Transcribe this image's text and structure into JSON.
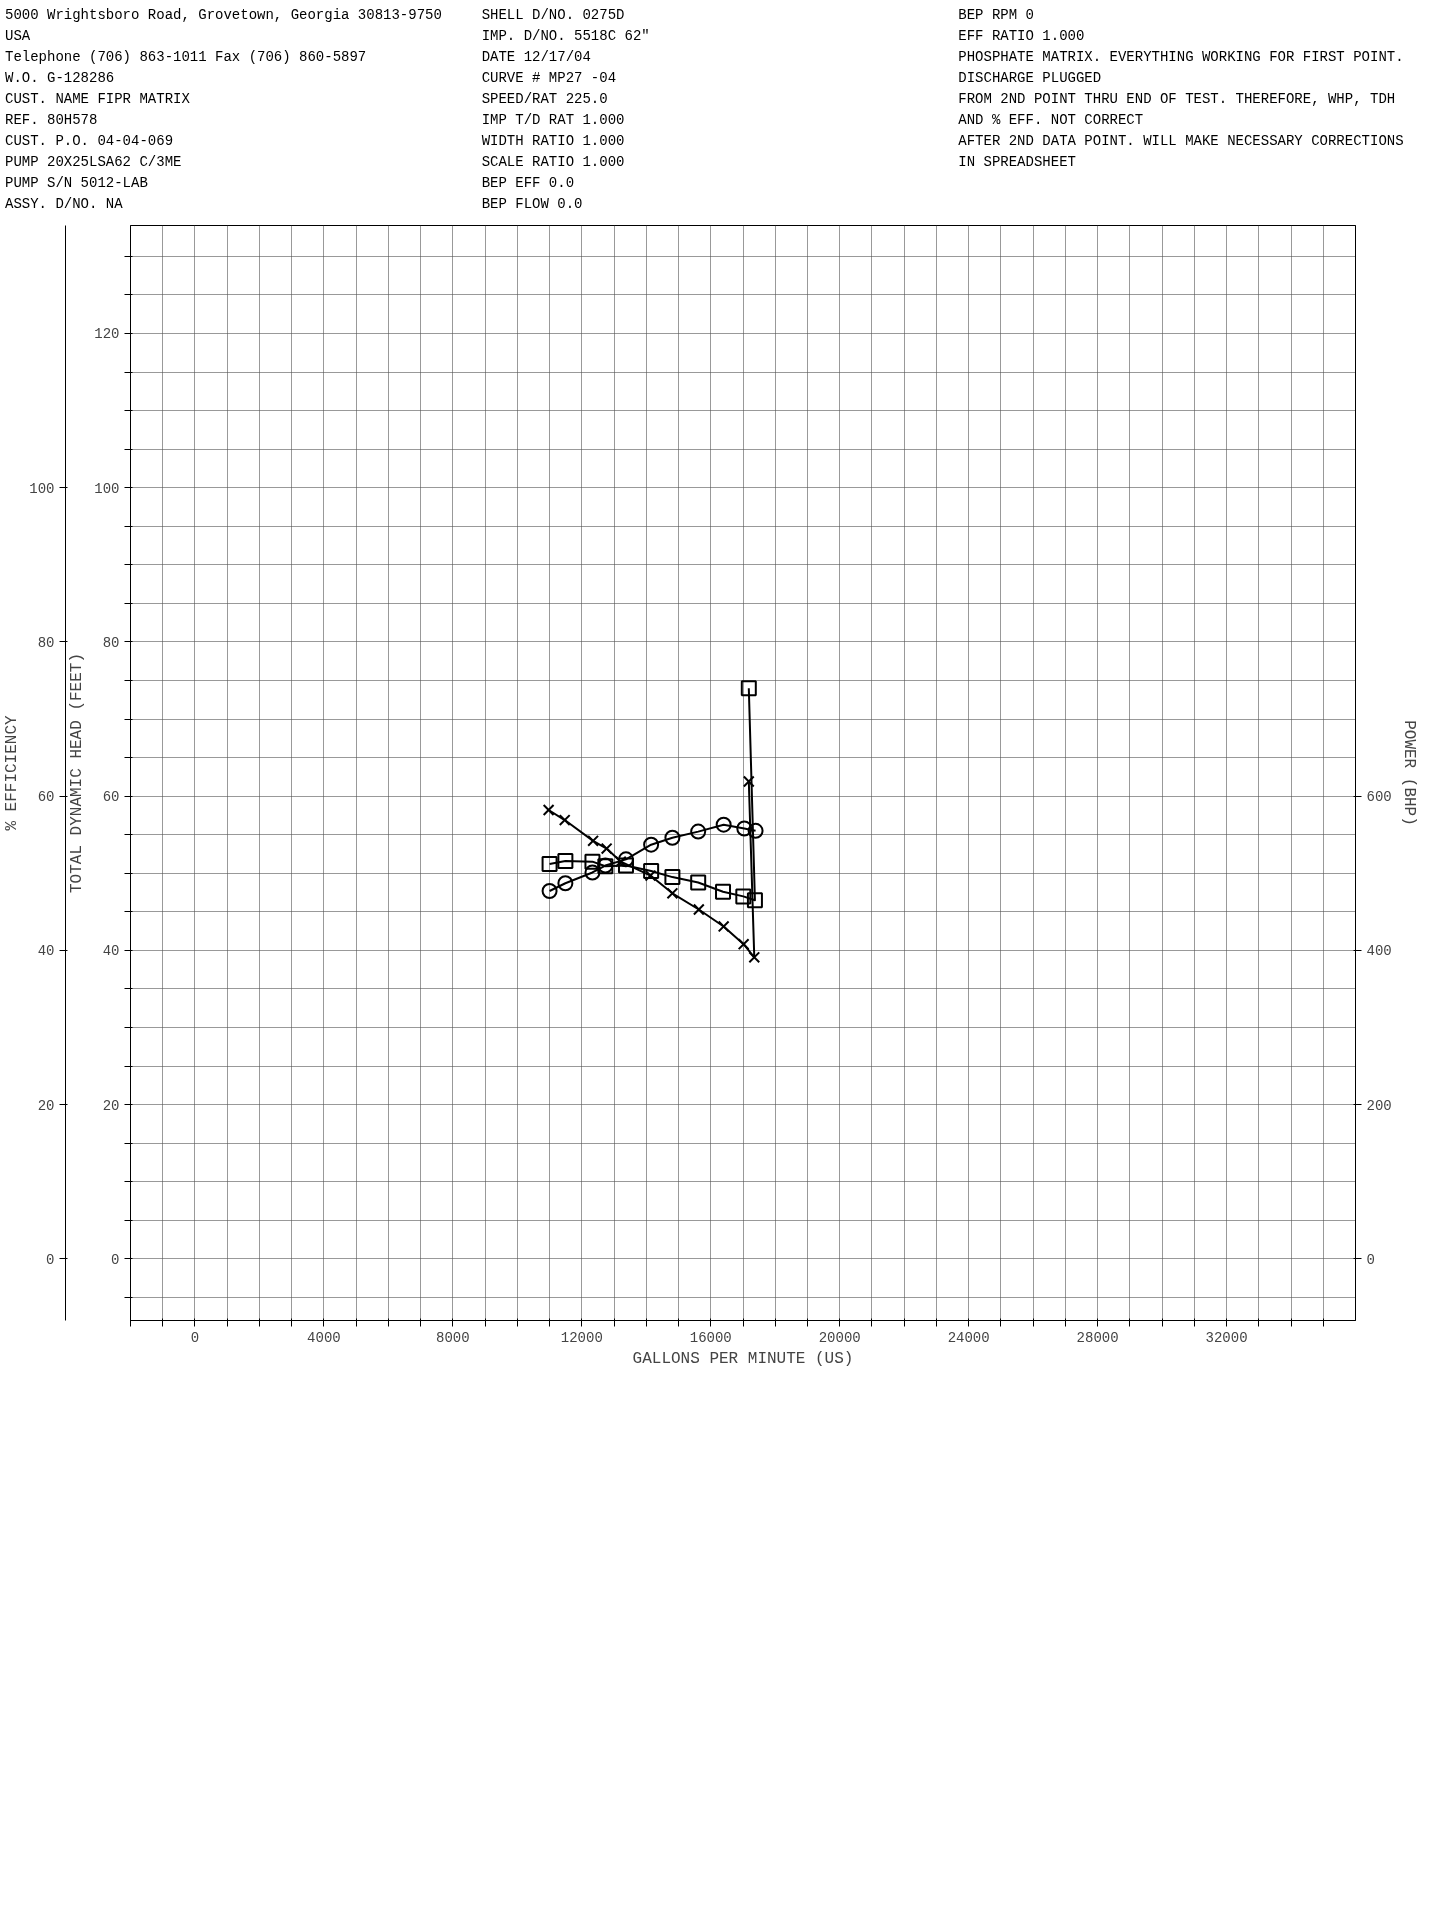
{
  "chart_data": {
    "type": "line",
    "xlabel": "GALLONS PER MINUTE (US)",
    "ylabel": "TOTAL DYNAMIC HEAD (FEET)",
    "y2label": "% EFFICIENCY",
    "y3label": "POWER (BHP)",
    "xlim": [
      -2000,
      36000
    ],
    "xticks": [
      {
        "value": -2000,
        "label": null
      },
      {
        "value": -1000,
        "label": null
      },
      0,
      {
        "value": 1000,
        "label": null
      },
      {
        "value": 2000,
        "label": null
      },
      {
        "value": 3000,
        "label": null
      },
      4000,
      {
        "value": 5000,
        "label": null
      },
      {
        "value": 6000,
        "label": null
      },
      {
        "value": 7000,
        "label": null
      },
      8000,
      {
        "value": 9000,
        "label": null
      },
      {
        "value": 10000,
        "label": null
      },
      {
        "value": 11000,
        "label": null
      },
      12000,
      {
        "value": 13000,
        "label": null
      },
      {
        "value": 14000,
        "label": null
      },
      {
        "value": 15000,
        "label": null
      },
      16000,
      {
        "value": 17000,
        "label": null
      },
      {
        "value": 18000,
        "label": null
      },
      {
        "value": 19000,
        "label": null
      },
      20000,
      {
        "value": 21000,
        "label": null
      },
      {
        "value": 22000,
        "label": null
      },
      {
        "value": 23000,
        "label": null
      },
      24000,
      {
        "value": 25000,
        "label": null
      },
      {
        "value": 26000,
        "label": null
      },
      {
        "value": 27000,
        "label": null
      },
      28000,
      {
        "value": 29000,
        "label": null
      },
      {
        "value": 30000,
        "label": null
      },
      {
        "value": 31000,
        "label": null
      },
      32000,
      {
        "value": 33000,
        "label": null
      },
      {
        "value": 34000,
        "label": null
      },
      {
        "value": 35000,
        "label": null
      }
    ],
    "ylim": [
      -8,
      134
    ],
    "yticks": [
      {
        "value": -5,
        "label": null
      },
      0,
      {
        "value": 5,
        "label": null
      },
      {
        "value": 10,
        "label": null
      },
      {
        "value": 15,
        "label": null
      },
      20,
      {
        "value": 25,
        "label": null
      },
      {
        "value": 30,
        "label": null
      },
      {
        "value": 35,
        "label": null
      },
      40,
      {
        "value": 45,
        "label": null
      },
      {
        "value": 50,
        "label": null
      },
      {
        "value": 55,
        "label": null
      },
      60,
      {
        "value": 65,
        "label": null
      },
      {
        "value": 70,
        "label": null
      },
      {
        "value": 75,
        "label": null
      },
      80,
      {
        "value": 85,
        "label": null
      },
      {
        "value": 90,
        "label": null
      },
      {
        "value": 95,
        "label": null
      },
      100,
      {
        "value": 105,
        "label": null
      },
      {
        "value": 110,
        "label": null
      },
      {
        "value": 115,
        "label": null
      },
      120,
      {
        "value": 125,
        "label": null
      },
      {
        "value": 130,
        "label": null
      }
    ],
    "y2lim": [
      -8,
      134
    ],
    "y2ticks": [
      0,
      20,
      40,
      60,
      80,
      100
    ],
    "y3lim": [
      -80,
      1340
    ],
    "y3ticks": [
      0,
      200,
      400,
      600
    ],
    "grid": true,
    "line_style": "solid",
    "series": [
      {
        "color": "#000000",
        "marker": "cross",
        "x": [
          17180,
          17350,
          17020,
          16400,
          15630,
          14810,
          14130,
          13210,
          12770,
          12350,
          11470,
          10970
        ],
        "values": [
          61.9,
          39.1,
          40.8,
          43.1,
          45.3,
          47.4,
          49.7,
          51.5,
          53.2,
          54.2,
          56.9,
          58.2
        ]
      },
      {
        "color": "#000000",
        "marker": "square",
        "axis": "y2",
        "x": [
          17180,
          17370,
          17010,
          16380,
          15610,
          14810,
          14150,
          13370,
          12730,
          12330,
          11490,
          11000
        ],
        "values": [
          74.0,
          46.5,
          47.0,
          47.6,
          48.8,
          49.5,
          50.3,
          51.0,
          50.9,
          51.5,
          51.6,
          51.2
        ]
      },
      {
        "color": "#000000",
        "marker": "circle",
        "axis": "y3",
        "x": [
          17390,
          17040,
          16400,
          15610,
          14810,
          14150,
          13370,
          12730,
          12330,
          11490,
          11000
        ],
        "values": [
          555,
          558,
          563,
          554,
          546,
          537,
          518,
          510,
          501,
          487,
          477
        ]
      }
    ],
    "annotations": [
      "5000 Wrightsboro Road, Grovetown, Georgia 30813-9750 USA",
      "Telephone (706) 863-1011   Fax (706) 860-5897",
      "W.O.   G-128286",
      "CUST. NAME   FIPR MATRIX",
      "REF.   80H578",
      "CUST. P.O.   04-04-069",
      "PUMP   20X25LSA62 C/3ME",
      "PUMP S/N   5012-LAB",
      "ASSY. D/NO.   NA",
      "SHELL D/NO.   0275D",
      "IMP. D/NO.   5518C   62\"",
      "DATE   12/17/04",
      "CURVE #   MP27 -04",
      "SPEED/RAT   225.0",
      "IMP T/D RAT   1.000",
      "WIDTH RATIO   1.000",
      "SCALE RATIO   1.000",
      "BEP EFF   0.0",
      "BEP FLOW   0.0",
      "BEP RPM   0",
      "EFF RATIO   1.000",
      "PHOSPHATE MATRIX. EVERYTHING WORKING FOR FIRST POINT. DISCHARGE PLUGGED",
      "FROM 2ND POINT THRU END OF TEST. THEREFORE, WHP, TDH AND % EFF. NOT CORRECT",
      "AFTER 2ND DATA POINT. WILL MAKE NECESSARY CORRECTIONS IN SPREADSHEET"
    ]
  }
}
